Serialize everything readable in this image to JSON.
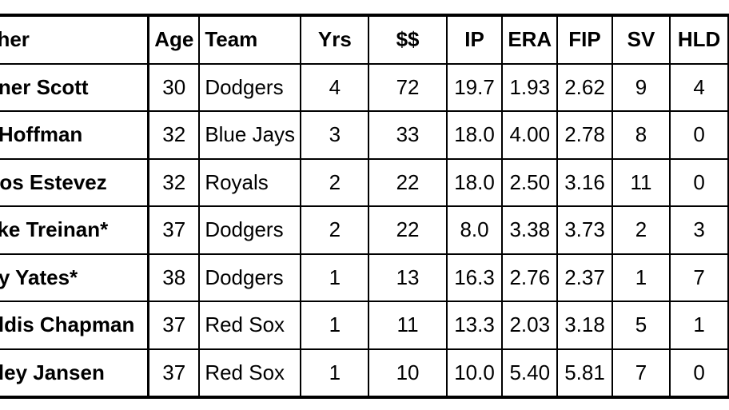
{
  "table": {
    "headers": [
      "cher",
      "Age",
      "Team",
      "Yrs",
      "$$",
      "IP",
      "ERA",
      "FIP",
      "SV",
      "HLD"
    ],
    "rows": [
      [
        "nner Scott",
        "30",
        "Dodgers",
        "4",
        "72",
        "19.7",
        "1.93",
        "2.62",
        "9",
        "4"
      ],
      [
        "f Hoffman",
        "32",
        "Blue Jays",
        "3",
        "33",
        "18.0",
        "4.00",
        "2.78",
        "8",
        "0"
      ],
      [
        "rlos Estevez",
        "32",
        "Royals",
        "2",
        "22",
        "18.0",
        "2.50",
        "3.16",
        "11",
        "0"
      ],
      [
        "ake Treinan*",
        "37",
        "Dodgers",
        "2",
        "22",
        "8.0",
        "3.38",
        "3.73",
        "2",
        "3"
      ],
      [
        "by Yates*",
        "38",
        "Dodgers",
        "1",
        "13",
        "16.3",
        "2.76",
        "2.37",
        "1",
        "7"
      ],
      [
        "oldis Chapman",
        "37",
        "Red Sox",
        "1",
        "11",
        "13.3",
        "2.03",
        "3.18",
        "5",
        "1"
      ],
      [
        "nley Jansen",
        "37",
        "Red Sox",
        "1",
        "10",
        "10.0",
        "5.40",
        "5.81",
        "7",
        "0"
      ]
    ]
  }
}
